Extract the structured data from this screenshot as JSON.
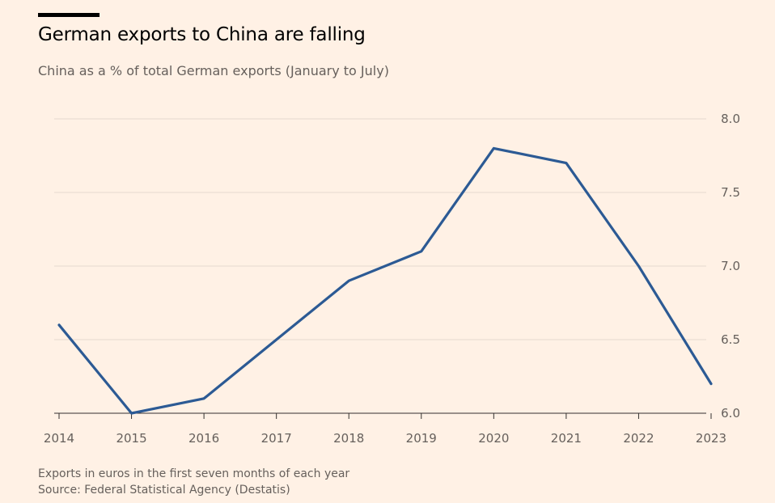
{
  "colors": {
    "background": "#fff1e5",
    "line": "#2c5a94",
    "grid": "#e6d9ce",
    "axis": "#33302e"
  },
  "footnote": {
    "note": "Exports in euros in the first seven months of each year",
    "source": "Source: Federal Statistical Agency (Destatis)"
  },
  "chart_data": {
    "type": "line",
    "title": "German exports to China are falling",
    "subtitle": "China as a % of total German exports (January to July)",
    "xlabel": "",
    "ylabel": "",
    "x": [
      2014,
      2015,
      2016,
      2017,
      2018,
      2019,
      2020,
      2021,
      2022,
      2023
    ],
    "x_tick_labels": [
      "2014",
      "2015",
      "2016",
      "2017",
      "2018",
      "2019",
      "2020",
      "2021",
      "2022",
      "2023"
    ],
    "series": [
      {
        "name": "China share of German exports",
        "values": [
          6.6,
          6.0,
          6.1,
          6.5,
          6.9,
          7.1,
          7.8,
          7.7,
          7.0,
          6.2
        ]
      }
    ],
    "ylim": [
      6.0,
      8.0
    ],
    "y_ticks": [
      6.0,
      6.5,
      7.0,
      7.5,
      8.0
    ],
    "y_tick_labels": [
      "6.0",
      "6.5",
      "7.0",
      "7.5",
      "8.0"
    ],
    "y_axis_side": "right",
    "grid": true,
    "legend": "none"
  }
}
